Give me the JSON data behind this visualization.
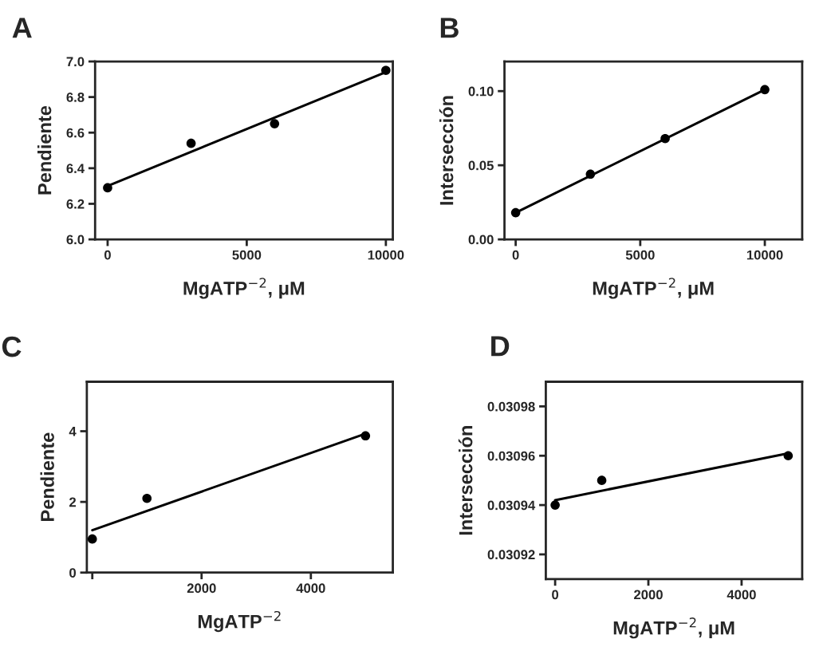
{
  "chart_data": [
    {
      "type": "scatter",
      "title": "A",
      "xlabel": "MgATP$^{−2}$, μM",
      "ylabel": "Pendiente",
      "xlim": [
        -450,
        10250
      ],
      "xticks": [
        0,
        5000,
        10000
      ],
      "ylim": [
        6.0,
        7.0
      ],
      "yticks": [
        {
          "value": 6.0,
          "label": "6.0"
        },
        6.2,
        6.4,
        6.6,
        6.8,
        {
          "value": 7.0,
          "label": "7.0"
        }
      ],
      "marker": "circle",
      "grid": false,
      "legend": false,
      "series": [
        {
          "color": "#000000",
          "x": [
            0,
            3000,
            6000,
            10000
          ],
          "values": [
            6.29,
            6.54,
            6.65,
            6.95
          ]
        },
        {
          "type": "line",
          "color": "#000000",
          "marker": "none",
          "x": [
            0,
            10000
          ],
          "values": [
            6.3,
            6.94
          ]
        }
      ]
    },
    {
      "type": "scatter",
      "title": "B",
      "xlabel": "MgATP$^{−2}$, μM",
      "ylabel": "Intersección",
      "xlim": [
        -450,
        11500
      ],
      "xticks": [
        0,
        5000,
        10000
      ],
      "ylim": [
        0.0,
        0.12
      ],
      "yticks": [
        {
          "value": 0.0,
          "label": "0.00"
        },
        {
          "value": 0.05,
          "label": "0.05"
        },
        {
          "value": 0.1,
          "label": "0.10"
        }
      ],
      "marker": "circle",
      "grid": false,
      "legend": false,
      "series": [
        {
          "color": "#000000",
          "x": [
            0,
            3000,
            6000,
            10000
          ],
          "values": [
            0.018,
            0.044,
            0.068,
            0.101
          ]
        },
        {
          "type": "line",
          "color": "#000000",
          "marker": "none",
          "x": [
            0,
            10000
          ],
          "values": [
            0.018,
            0.101
          ]
        }
      ]
    },
    {
      "type": "scatter",
      "title": "C",
      "xlabel": "MgATP$^{−2}$",
      "ylabel": "Pendiente",
      "xlim": [
        -100,
        5500
      ],
      "xticks": [
        {
          "value": 0,
          "label": null
        },
        {
          "value": 2000,
          "label": "2000"
        },
        {
          "value": 4000,
          "label": "4000"
        }
      ],
      "ylim": [
        0,
        5.4
      ],
      "yticks": [
        0,
        2,
        4
      ],
      "marker": "circle",
      "grid": false,
      "legend": false,
      "series": [
        {
          "color": "#000000",
          "x": [
            0,
            1000,
            5000
          ],
          "values": [
            0.95,
            2.1,
            3.87
          ]
        },
        {
          "type": "line",
          "color": "#000000",
          "marker": "none",
          "x": [
            0,
            5000
          ],
          "values": [
            1.2,
            3.93
          ]
        }
      ]
    },
    {
      "type": "scatter",
      "title": "D",
      "xlabel": "MgATP$^{−2}$, μM",
      "ylabel": "Intersección",
      "xlim": [
        -200,
        5300
      ],
      "xticks": [
        0,
        2000,
        4000
      ],
      "ylim": [
        0.03091,
        0.03099
      ],
      "yticks": [
        {
          "value": 0.03092,
          "label": "0.03092"
        },
        {
          "value": 0.03094,
          "label": "0.03094"
        },
        {
          "value": 0.03096,
          "label": "0.03096"
        },
        {
          "value": 0.03098,
          "label": "0.03098"
        }
      ],
      "marker": "circle",
      "grid": false,
      "legend": false,
      "series": [
        {
          "color": "#000000",
          "x": [
            0,
            1000,
            5000
          ],
          "values": [
            0.03094,
            0.03095,
            0.03096
          ]
        },
        {
          "type": "line",
          "color": "#000000",
          "marker": "none",
          "x": [
            0,
            5000
          ],
          "values": [
            0.030942,
            0.030961
          ]
        }
      ]
    }
  ]
}
